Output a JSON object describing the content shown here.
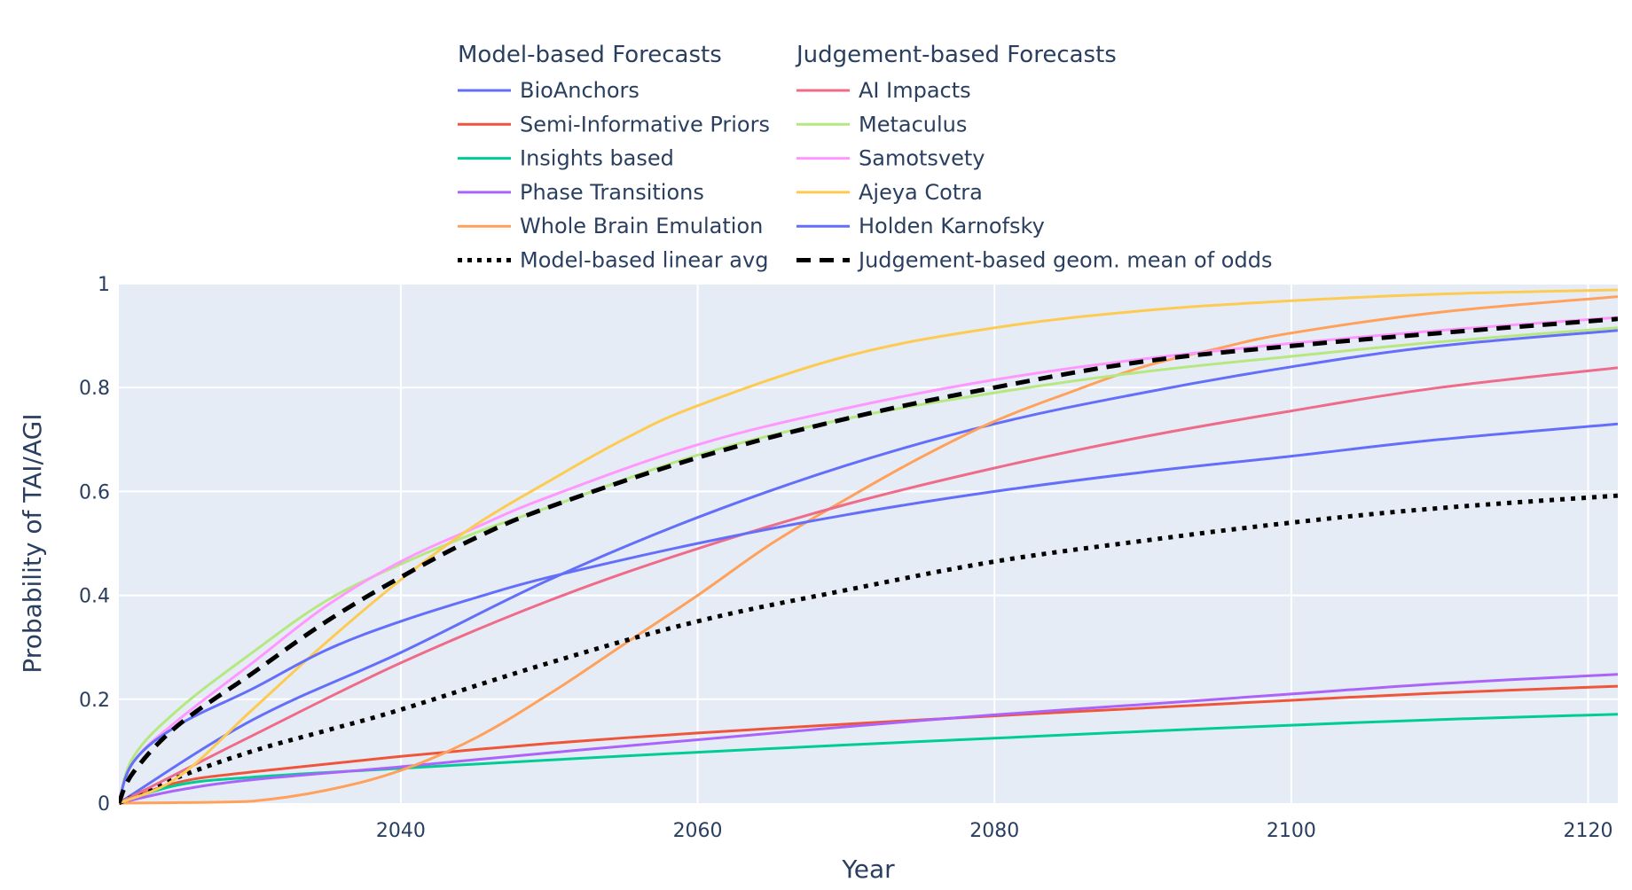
{
  "chart_data": {
    "type": "line",
    "xlabel": "Year",
    "ylabel": "Probability of TAI/AGI",
    "xlim": [
      2021,
      2122
    ],
    "ylim": [
      0,
      1
    ],
    "x_ticks": [
      "2040",
      "2060",
      "2080",
      "2100",
      "2120"
    ],
    "y_ticks": [
      "0",
      "0.2",
      "0.4",
      "0.6",
      "0.8",
      "1"
    ],
    "grid": true,
    "plot_bg": "#e5ecf6",
    "legend": {
      "placement": "top",
      "groups": [
        {
          "title": "Model-based Forecasts",
          "entries": [
            "BioAnchors",
            "Semi-Informative Priors",
            "Insights based",
            "Phase Transitions",
            "Whole Brain Emulation",
            "Model-based linear avg"
          ]
        },
        {
          "title": "Judgement-based Forecasts",
          "entries": [
            "AI Impacts",
            "Metaculus",
            "Samotsvety",
            "Ajeya Cotra",
            "Holden Karnofsky",
            "Judgement-based geom. mean of odds"
          ]
        }
      ]
    },
    "series": [
      {
        "name": "BioAnchors",
        "color": "#636efa",
        "dash": "solid",
        "x": [
          2021,
          2030,
          2040,
          2050,
          2060,
          2070,
          2080,
          2090,
          2100,
          2110,
          2122
        ],
        "y": [
          0,
          0.16,
          0.29,
          0.43,
          0.55,
          0.65,
          0.73,
          0.79,
          0.84,
          0.88,
          0.91
        ]
      },
      {
        "name": "Semi-Informative Priors",
        "color": "#ef553b",
        "dash": "solid",
        "x": [
          2021,
          2025,
          2030,
          2040,
          2050,
          2060,
          2070,
          2080,
          2090,
          2100,
          2110,
          2122
        ],
        "y": [
          0,
          0.04,
          0.06,
          0.09,
          0.115,
          0.135,
          0.152,
          0.168,
          0.183,
          0.198,
          0.212,
          0.225
        ]
      },
      {
        "name": "Insights based",
        "color": "#00cc96",
        "dash": "solid",
        "x": [
          2021,
          2025,
          2030,
          2040,
          2050,
          2060,
          2070,
          2080,
          2090,
          2100,
          2110,
          2122
        ],
        "y": [
          0,
          0.035,
          0.05,
          0.067,
          0.083,
          0.098,
          0.112,
          0.125,
          0.138,
          0.15,
          0.161,
          0.171
        ]
      },
      {
        "name": "Phase Transitions",
        "color": "#ab63fa",
        "dash": "solid",
        "x": [
          2021,
          2025,
          2030,
          2040,
          2050,
          2060,
          2070,
          2080,
          2090,
          2100,
          2110,
          2122
        ],
        "y": [
          0,
          0.025,
          0.045,
          0.07,
          0.097,
          0.122,
          0.147,
          0.17,
          0.19,
          0.21,
          0.23,
          0.248
        ]
      },
      {
        "name": "Whole Brain Emulation",
        "color": "#ffa15a",
        "dash": "solid",
        "x": [
          2021,
          2025,
          2030,
          2035,
          2040,
          2045,
          2050,
          2055,
          2060,
          2065,
          2070,
          2075,
          2080,
          2085,
          2090,
          2095,
          2100,
          2110,
          2122
        ],
        "y": [
          0,
          0.001,
          0.004,
          0.025,
          0.063,
          0.125,
          0.21,
          0.305,
          0.4,
          0.5,
          0.585,
          0.665,
          0.735,
          0.79,
          0.84,
          0.875,
          0.905,
          0.945,
          0.975
        ]
      },
      {
        "name": "Model-based linear avg",
        "color": "#000000",
        "dash": "dot",
        "x": [
          2021,
          2025,
          2030,
          2035,
          2040,
          2050,
          2060,
          2070,
          2080,
          2090,
          2100,
          2110,
          2122
        ],
        "y": [
          0,
          0.05,
          0.1,
          0.14,
          0.18,
          0.27,
          0.35,
          0.41,
          0.465,
          0.505,
          0.54,
          0.568,
          0.592
        ]
      },
      {
        "name": "AI Impacts",
        "color": "#ef6b8a",
        "dash": "solid",
        "x": [
          2021,
          2030,
          2040,
          2050,
          2060,
          2070,
          2080,
          2090,
          2100,
          2110,
          2122
        ],
        "y": [
          0,
          0.13,
          0.27,
          0.39,
          0.49,
          0.575,
          0.645,
          0.705,
          0.755,
          0.8,
          0.838
        ]
      },
      {
        "name": "Metaculus",
        "color": "#b6e880",
        "dash": "solid",
        "x": [
          2021,
          2022,
          2025,
          2030,
          2035,
          2040,
          2045,
          2050,
          2060,
          2070,
          2080,
          2090,
          2100,
          2110,
          2122
        ],
        "y": [
          0,
          0.09,
          0.18,
          0.29,
          0.39,
          0.46,
          0.52,
          0.57,
          0.67,
          0.74,
          0.79,
          0.83,
          0.86,
          0.888,
          0.915
        ]
      },
      {
        "name": "Samotsvety",
        "color": "#ff97ff",
        "dash": "solid",
        "x": [
          2021,
          2022,
          2025,
          2030,
          2035,
          2040,
          2045,
          2050,
          2060,
          2070,
          2080,
          2090,
          2100,
          2110,
          2122
        ],
        "y": [
          0,
          0.08,
          0.16,
          0.27,
          0.38,
          0.465,
          0.53,
          0.59,
          0.69,
          0.76,
          0.815,
          0.855,
          0.885,
          0.91,
          0.935
        ]
      },
      {
        "name": "Ajeya Cotra",
        "color": "#fecb52",
        "dash": "solid",
        "x": [
          2021,
          2025,
          2030,
          2035,
          2040,
          2045,
          2050,
          2055,
          2060,
          2070,
          2080,
          2090,
          2100,
          2110,
          2122
        ],
        "y": [
          0,
          0.05,
          0.18,
          0.31,
          0.43,
          0.535,
          0.62,
          0.7,
          0.765,
          0.86,
          0.915,
          0.948,
          0.967,
          0.98,
          0.988
        ]
      },
      {
        "name": "Holden Karnofsky",
        "color": "#636efa",
        "dash": "solid",
        "x": [
          2021,
          2022,
          2025,
          2030,
          2035,
          2040,
          2045,
          2050,
          2060,
          2070,
          2080,
          2090,
          2100,
          2110,
          2122
        ],
        "y": [
          0,
          0.08,
          0.15,
          0.22,
          0.295,
          0.35,
          0.395,
          0.435,
          0.5,
          0.555,
          0.6,
          0.637,
          0.668,
          0.7,
          0.73
        ]
      },
      {
        "name": "Judgement-based geom. mean of odds",
        "color": "#000000",
        "dash": "dash",
        "x": [
          2021,
          2022,
          2025,
          2030,
          2035,
          2040,
          2045,
          2050,
          2060,
          2070,
          2080,
          2090,
          2100,
          2110,
          2122
        ],
        "y": [
          0,
          0.06,
          0.15,
          0.25,
          0.35,
          0.435,
          0.51,
          0.57,
          0.665,
          0.74,
          0.8,
          0.85,
          0.88,
          0.905,
          0.932
        ]
      }
    ]
  }
}
